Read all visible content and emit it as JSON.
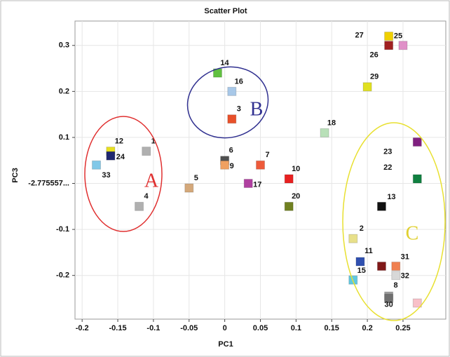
{
  "chart_data": {
    "type": "scatter",
    "title": "Scatter Plot",
    "x_label": "PC1",
    "y_label": "PC3",
    "annotations": [
      "A",
      "B",
      "C"
    ],
    "xlim": [
      -0.21,
      0.31
    ],
    "ylim": [
      -0.295,
      0.353
    ],
    "xticks": [
      -0.2,
      -0.15,
      -0.1,
      -0.05,
      0,
      0.05,
      0.1,
      0.15,
      0.2,
      0.25
    ],
    "yticks": [
      -0.2,
      -0.1,
      {
        "value": 0,
        "label": "-2.775557..."
      },
      0.1,
      0.2,
      0.3
    ],
    "grid": true,
    "x": [
      -0.11,
      0.18,
      0.01,
      -0.12,
      -0.05,
      0,
      0.05,
      0.23,
      0,
      0.09,
      0.19,
      -0.16,
      0.22,
      -0.01,
      0.18,
      0.01,
      0.033,
      0.14,
      0.09,
      0.27,
      0.27,
      -0.16,
      0.25,
      0.23,
      0.23,
      0.2,
      0.23,
      0.24,
      0.24,
      -0.18,
      0.22,
      0.27
    ],
    "values": [
      0.07,
      -0.12,
      0.14,
      -0.05,
      -0.01,
      0.05,
      0.04,
      -0.245,
      0.04,
      0.01,
      -0.17,
      0.07,
      -0.05,
      0.24,
      -0.21,
      0.2,
      0,
      0.11,
      -0.05,
      0.01,
      0.09,
      0.06,
      0.3,
      0.3,
      0.32,
      0.21,
      -0.25,
      -0.18,
      -0.2,
      0.04,
      -0.18,
      -0.26
    ],
    "point_labels": [
      "1",
      "2",
      "3",
      "4",
      "5",
      "6",
      "7",
      "8",
      "9",
      "10",
      "11",
      "12",
      "13",
      "14",
      "15",
      "16",
      "17",
      "18",
      "20",
      "22",
      "23",
      "24",
      "25",
      "26",
      "27",
      "29",
      "30",
      "31",
      "32",
      "33",
      null,
      null
    ],
    "colors": [
      "#b0b0b0",
      "#e8e08a",
      "#e8502a",
      "#b0b0b0",
      "#d4a87a",
      "#505050",
      "#ee5a3a",
      "#9a9a9a",
      "#f0a060",
      "#e82020",
      "#3050b0",
      "#e8e020",
      "#111111",
      "#60c040",
      "#60c8e0",
      "#a8c8e8",
      "#b040a0",
      "#b8e0b8",
      "#708020",
      "#108040",
      "#802080",
      "#202870",
      "#e090c8",
      "#a02020",
      "#f0d000",
      "#e0e020",
      "#707070",
      "#f08050",
      "#d8d8d8",
      "#80c8e8",
      "#801818",
      "#f8c0c8"
    ]
  }
}
